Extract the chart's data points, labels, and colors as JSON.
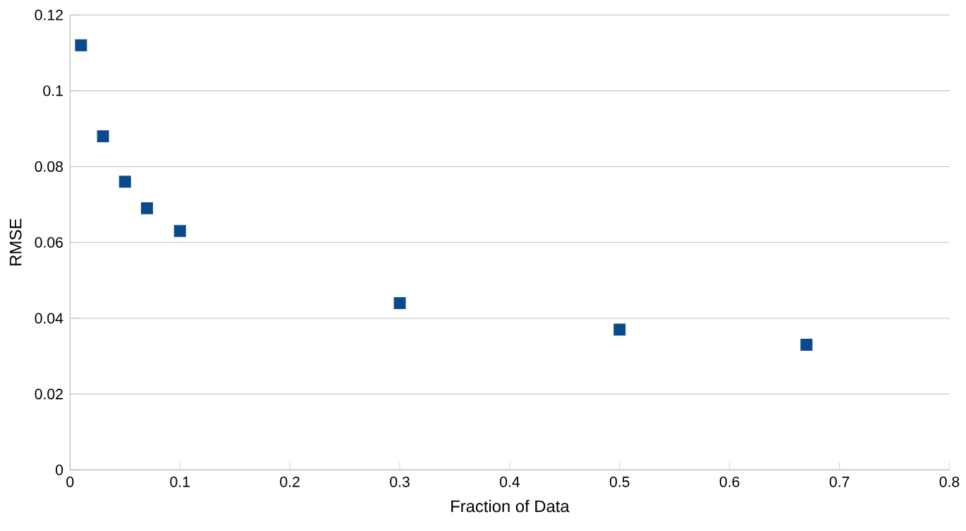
{
  "chart_data": {
    "type": "scatter",
    "xlabel": "Fraction of Data",
    "ylabel": "RMSE",
    "x": [
      0.01,
      0.03,
      0.05,
      0.07,
      0.1,
      0.3,
      0.5,
      0.67
    ],
    "values": [
      0.112,
      0.088,
      0.076,
      0.069,
      0.063,
      0.044,
      0.037,
      0.033
    ],
    "color": "#0a4a8c",
    "marker": "square",
    "xlim": [
      0,
      0.8
    ],
    "xticks": [
      0,
      0.1,
      0.2,
      0.3,
      0.4,
      0.5,
      0.6,
      0.7,
      0.8
    ],
    "ylim": [
      0,
      0.12
    ],
    "yticks": [
      0,
      0.02,
      0.04,
      0.06,
      0.08,
      0.1,
      0.12
    ],
    "grid": "y"
  }
}
